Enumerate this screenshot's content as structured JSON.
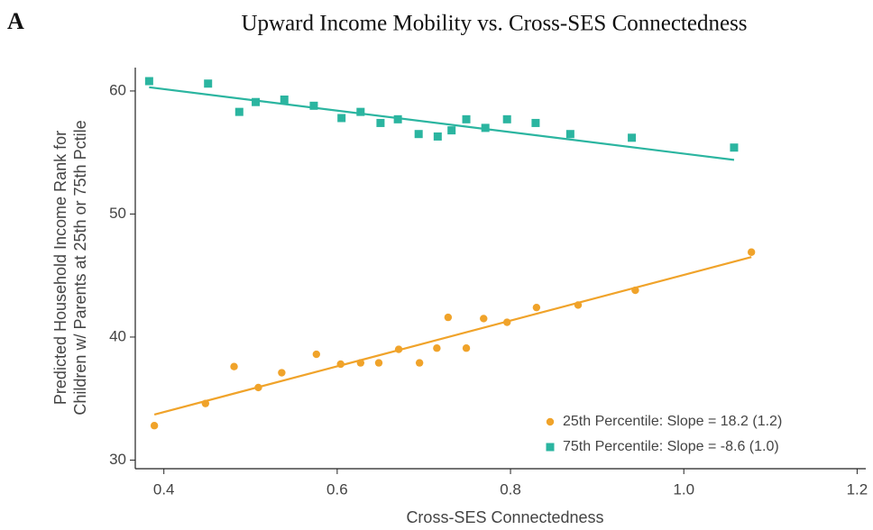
{
  "chart_data": {
    "type": "scatter",
    "panel": "A",
    "title": "Upward Income Mobility vs. Cross-SES Connectedness",
    "xlabel": "Cross-SES Connectedness",
    "ylabel": [
      "Predicted Household Income Rank for",
      "Children w/ Parents at 25th or 75th Pctile"
    ],
    "xlim": [
      0.367,
      1.21
    ],
    "ylim": [
      29.3,
      61.9
    ],
    "xticks": [
      0.4,
      0.6,
      0.8,
      {
        "value": 1,
        "label": "1.0"
      },
      1.2
    ],
    "yticks": [
      30,
      40,
      50,
      60
    ],
    "legend": "bottom-right",
    "series": [
      {
        "name": "25th Percentile: Slope = 18.2 (1.2)",
        "color": "#f0a32a",
        "marker": "circle",
        "x": [
          0.389,
          0.448,
          0.481,
          0.509,
          0.536,
          0.576,
          0.604,
          0.627,
          0.648,
          0.671,
          0.695,
          0.715,
          0.728,
          0.749,
          0.769,
          0.796,
          0.83,
          0.878,
          0.944,
          1.078
        ],
        "values": [
          32.8,
          34.6,
          37.6,
          35.9,
          37.1,
          38.6,
          37.8,
          37.9,
          37.9,
          39.0,
          37.9,
          39.1,
          41.6,
          39.1,
          41.5,
          41.2,
          42.4,
          42.6,
          43.8,
          46.9
        ],
        "fit": {
          "x": [
            0.389,
            1.078
          ],
          "values": [
            33.7,
            46.5
          ]
        }
      },
      {
        "name": "75th Percentile: Slope = -8.6 (1.0)",
        "color": "#2bb5a0",
        "marker": "square",
        "x": [
          0.383,
          0.451,
          0.487,
          0.506,
          0.539,
          0.573,
          0.605,
          0.627,
          0.65,
          0.67,
          0.694,
          0.716,
          0.732,
          0.749,
          0.771,
          0.796,
          0.829,
          0.869,
          0.94,
          1.058
        ],
        "values": [
          60.8,
          60.6,
          58.3,
          59.1,
          59.3,
          58.8,
          57.8,
          58.3,
          57.4,
          57.7,
          56.5,
          56.3,
          56.8,
          57.7,
          57.0,
          57.7,
          57.4,
          56.5,
          56.2,
          55.4
        ],
        "fit": {
          "x": [
            0.383,
            1.058
          ],
          "values": [
            60.3,
            54.4
          ]
        }
      }
    ]
  }
}
